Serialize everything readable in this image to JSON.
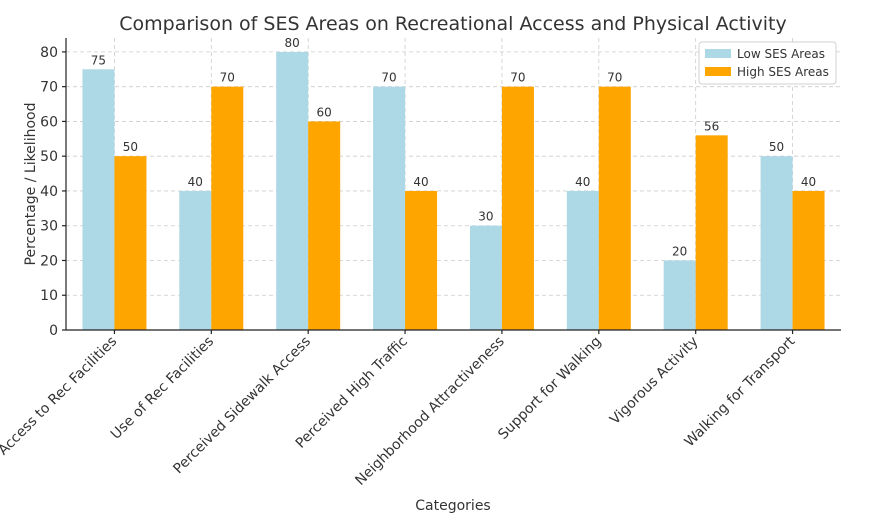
{
  "chart_data": {
    "type": "bar",
    "title": "Comparison of SES Areas on Recreational Access and Physical Activity",
    "xlabel": "Categories",
    "ylabel": "Percentage / Likelihood",
    "categories": [
      "Access to Rec Facilities",
      "Use of Rec Facilities",
      "Perceived Sidewalk Access",
      "Perceived High Traffic",
      "Neighborhood Attractiveness",
      "Support for Walking",
      "Vigorous Activity",
      "Walking for Transport"
    ],
    "series": [
      {
        "name": "Low SES Areas",
        "color": "#add8e6",
        "values": [
          75,
          40,
          80,
          70,
          30,
          40,
          20,
          50
        ]
      },
      {
        "name": "High SES Areas",
        "color": "#ffa500",
        "values": [
          50,
          70,
          60,
          40,
          70,
          70,
          56,
          40
        ]
      }
    ],
    "ylim": [
      0,
      84
    ],
    "yticks": [
      0,
      10,
      20,
      30,
      40,
      50,
      60,
      70,
      80
    ],
    "grid": true,
    "legend_position": "top-right"
  }
}
